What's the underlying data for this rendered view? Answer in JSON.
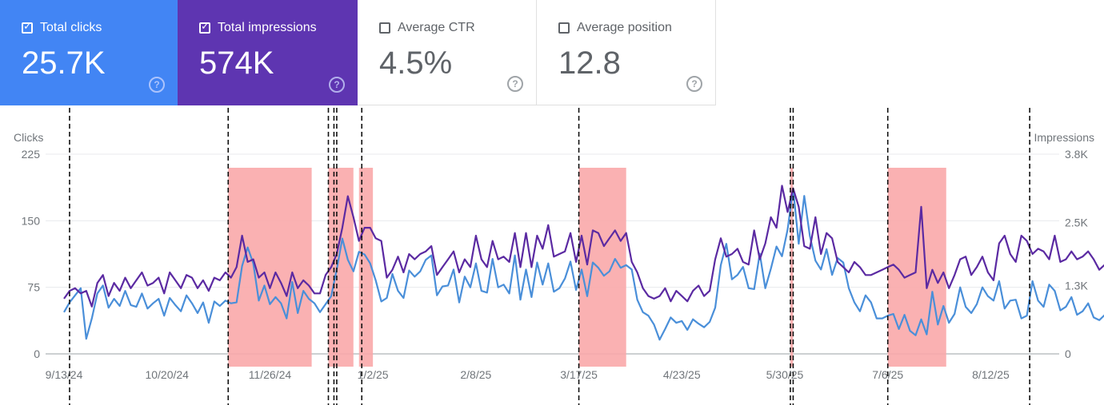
{
  "metrics": [
    {
      "label": "Total clicks",
      "value": "25.7K",
      "checked": true,
      "color": "#4285f4"
    },
    {
      "label": "Total impressions",
      "value": "574K",
      "checked": true,
      "color": "#5e35b1"
    },
    {
      "label": "Average CTR",
      "value": "4.5%",
      "checked": false,
      "color": "#ffffff"
    },
    {
      "label": "Average position",
      "value": "12.8",
      "checked": false,
      "color": "#ffffff"
    }
  ],
  "help_glyph": "?",
  "chart_data": {
    "type": "line",
    "left_axis": {
      "label": "Clicks",
      "ticks": [
        0,
        75,
        150,
        225
      ],
      "tick_labels": [
        "0",
        "75",
        "150",
        "225"
      ],
      "range": [
        0,
        225
      ]
    },
    "right_axis": {
      "label": "Impressions",
      "ticks": [
        0,
        1300,
        2500,
        3800
      ],
      "tick_labels": [
        "0",
        "1.3K",
        "2.5K",
        "3.8K"
      ],
      "range": [
        0,
        3800
      ]
    },
    "x_start": "2024-09-13",
    "x_end": "2025-09-01",
    "x_tick_labels": [
      "9/13/24",
      "10/20/24",
      "11/26/24",
      "1/2/25",
      "2/8/25",
      "3/17/25",
      "4/23/25",
      "5/30/25",
      "7/6/25",
      "8/12/25"
    ],
    "x_tick_dates": [
      "2024-09-13",
      "2024-10-20",
      "2024-11-26",
      "2025-01-02",
      "2025-02-08",
      "2025-03-17",
      "2025-04-23",
      "2025-05-30",
      "2025-07-06",
      "2025-08-12"
    ],
    "shaded_periods": [
      {
        "start": "2024-11-11",
        "end": "2024-12-11"
      },
      {
        "start": "2024-12-17",
        "end": "2024-12-26"
      },
      {
        "start": "2024-12-28",
        "end": "2025-01-02"
      },
      {
        "start": "2025-03-17",
        "end": "2025-04-03"
      },
      {
        "start": "2025-06-01",
        "end": "2025-06-02"
      },
      {
        "start": "2025-07-06",
        "end": "2025-07-27"
      }
    ],
    "event_lines": [
      "2024-09-15",
      "2024-11-11",
      "2024-12-17",
      "2024-12-19",
      "2024-12-20",
      "2024-12-29",
      "2025-03-17",
      "2025-06-01",
      "2025-06-02",
      "2025-07-06",
      "2025-08-26"
    ],
    "series": [
      {
        "name": "Clicks",
        "axis": "left",
        "color": "#4a8fd9",
        "start": "2024-09-13",
        "step_days": 2,
        "values": [
          47,
          58,
          66,
          74,
          17,
          40,
          68,
          77,
          52,
          62,
          54,
          71,
          55,
          53,
          68,
          51,
          57,
          62,
          43,
          63,
          55,
          48,
          66,
          57,
          46,
          58,
          35,
          59,
          54,
          60,
          57,
          58,
          99,
          120,
          102,
          60,
          77,
          56,
          64,
          57,
          40,
          81,
          46,
          71,
          62,
          57,
          47,
          56,
          65,
          95,
          130,
          106,
          93,
          115,
          112,
          102,
          83,
          59,
          63,
          90,
          71,
          63,
          94,
          87,
          93,
          106,
          111,
          66,
          76,
          77,
          95,
          58,
          87,
          75,
          102,
          71,
          69,
          107,
          75,
          78,
          68,
          111,
          61,
          95,
          64,
          103,
          78,
          102,
          70,
          74,
          85,
          104,
          72,
          95,
          65,
          103,
          97,
          88,
          93,
          107,
          97,
          100,
          95,
          61,
          47,
          43,
          33,
          16,
          28,
          41,
          35,
          37,
          27,
          39,
          34,
          30,
          36,
          52,
          100,
          124,
          84,
          89,
          98,
          74,
          73,
          113,
          74,
          96,
          121,
          110,
          140,
          186,
          124,
          178,
          133,
          105,
          95,
          118,
          89,
          108,
          103,
          74,
          58,
          48,
          66,
          58,
          40,
          40,
          43,
          45,
          28,
          44,
          26,
          21,
          39,
          22,
          70,
          33,
          54,
          35,
          45,
          75,
          53,
          46,
          56,
          75,
          65,
          60,
          82,
          51,
          60,
          61,
          40,
          43,
          82,
          60,
          53,
          78,
          71,
          49,
          53,
          64,
          44,
          48,
          57,
          41,
          38,
          44,
          37,
          58,
          51,
          45,
          37,
          30,
          38,
          25
        ]
      },
      {
        "name": "Impressions",
        "axis": "right",
        "color": "#5b2aa2",
        "start": "2024-09-13",
        "step_days": 2,
        "values": [
          1050,
          1200,
          1250,
          1150,
          1200,
          900,
          1350,
          1500,
          1100,
          1350,
          1200,
          1450,
          1250,
          1400,
          1550,
          1300,
          1350,
          1450,
          1150,
          1550,
          1400,
          1250,
          1500,
          1450,
          1250,
          1400,
          1200,
          1450,
          1400,
          1550,
          1450,
          1650,
          2250,
          1750,
          1800,
          1450,
          1550,
          1250,
          1550,
          1350,
          1100,
          1550,
          1250,
          1400,
          1300,
          1150,
          1150,
          1500,
          1650,
          1900,
          2400,
          3000,
          2600,
          2150,
          2400,
          2400,
          2200,
          2150,
          1450,
          1600,
          1850,
          1550,
          1900,
          1800,
          1900,
          1950,
          2050,
          1500,
          1650,
          1800,
          1950,
          1550,
          1800,
          1650,
          2250,
          1800,
          1650,
          2150,
          1800,
          1850,
          1750,
          2300,
          1650,
          2300,
          1650,
          2250,
          2000,
          2450,
          1850,
          1900,
          1950,
          2300,
          1750,
          2250,
          1700,
          2350,
          2300,
          2050,
          2200,
          2350,
          2150,
          2300,
          1750,
          1550,
          1250,
          1100,
          1050,
          1100,
          1250,
          1000,
          1200,
          1100,
          1000,
          1200,
          1300,
          1100,
          1200,
          1800,
          2200,
          1850,
          1900,
          2000,
          1750,
          1700,
          2350,
          1800,
          2100,
          2600,
          2400,
          3200,
          2700,
          3150,
          2800,
          2050,
          2000,
          2600,
          1900,
          2300,
          2200,
          1750,
          1650,
          1550,
          1750,
          1650,
          1500,
          1500,
          1550,
          1600,
          1650,
          1700,
          1600,
          1450,
          1500,
          1550,
          2800,
          1250,
          1600,
          1350,
          1550,
          1250,
          1500,
          1800,
          1850,
          1500,
          1650,
          1850,
          1550,
          1400,
          2100,
          2250,
          1900,
          1750,
          2250,
          2150,
          1900,
          2000,
          1950,
          1800,
          2250,
          1750,
          1800,
          1950,
          1800,
          1850,
          1950,
          1800,
          1600,
          1700,
          1600,
          1650,
          1550,
          950
        ]
      }
    ]
  }
}
